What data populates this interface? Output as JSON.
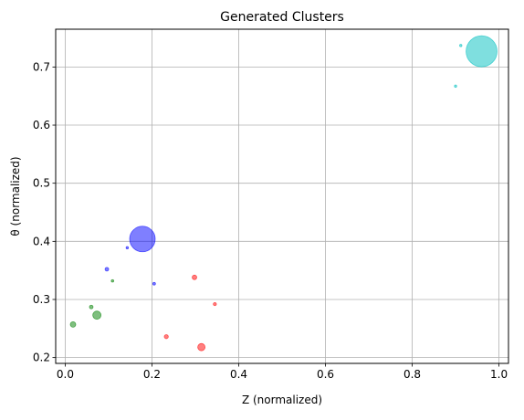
{
  "chart_data": {
    "type": "scatter",
    "title": "Generated Clusters",
    "xlabel": "Z (normalized)",
    "ylabel": "θ (normalized)",
    "xlim": [
      -0.022,
      1.022
    ],
    "ylim": [
      0.19,
      0.765
    ],
    "xticks": [
      0.0,
      0.2,
      0.4,
      0.6,
      0.8,
      1.0
    ],
    "xtick_labels": [
      "0.0",
      "0.2",
      "0.4",
      "0.6",
      "0.8",
      "1.0"
    ],
    "yticks": [
      0.2,
      0.3,
      0.4,
      0.5,
      0.6,
      0.7
    ],
    "ytick_labels": [
      "0.2",
      "0.3",
      "0.4",
      "0.5",
      "0.6",
      "0.7"
    ],
    "grid": true,
    "legend": false,
    "point_alpha": 0.5,
    "series": [
      {
        "color": "#0000ff",
        "points": [
          {
            "x": 0.178,
            "y": 0.404,
            "size": 14
          },
          {
            "x": 0.143,
            "y": 0.389,
            "size": 1.3
          },
          {
            "x": 0.096,
            "y": 0.352,
            "size": 2
          },
          {
            "x": 0.205,
            "y": 0.327,
            "size": 1.5
          }
        ]
      },
      {
        "color": "#008000",
        "points": [
          {
            "x": 0.073,
            "y": 0.273,
            "size": 4.5
          },
          {
            "x": 0.06,
            "y": 0.287,
            "size": 2
          },
          {
            "x": 0.109,
            "y": 0.332,
            "size": 1.4
          },
          {
            "x": 0.018,
            "y": 0.257,
            "size": 3
          }
        ]
      },
      {
        "color": "#ff0000",
        "points": [
          {
            "x": 0.314,
            "y": 0.218,
            "size": 4
          },
          {
            "x": 0.233,
            "y": 0.236,
            "size": 2.2
          },
          {
            "x": 0.298,
            "y": 0.338,
            "size": 2.5
          },
          {
            "x": 0.345,
            "y": 0.292,
            "size": 1.7
          }
        ]
      },
      {
        "color": "#00c0c0",
        "points": [
          {
            "x": 0.96,
            "y": 0.727,
            "size": 17
          },
          {
            "x": 0.912,
            "y": 0.737,
            "size": 1.3
          },
          {
            "x": 0.9,
            "y": 0.667,
            "size": 1.3
          }
        ]
      }
    ]
  }
}
